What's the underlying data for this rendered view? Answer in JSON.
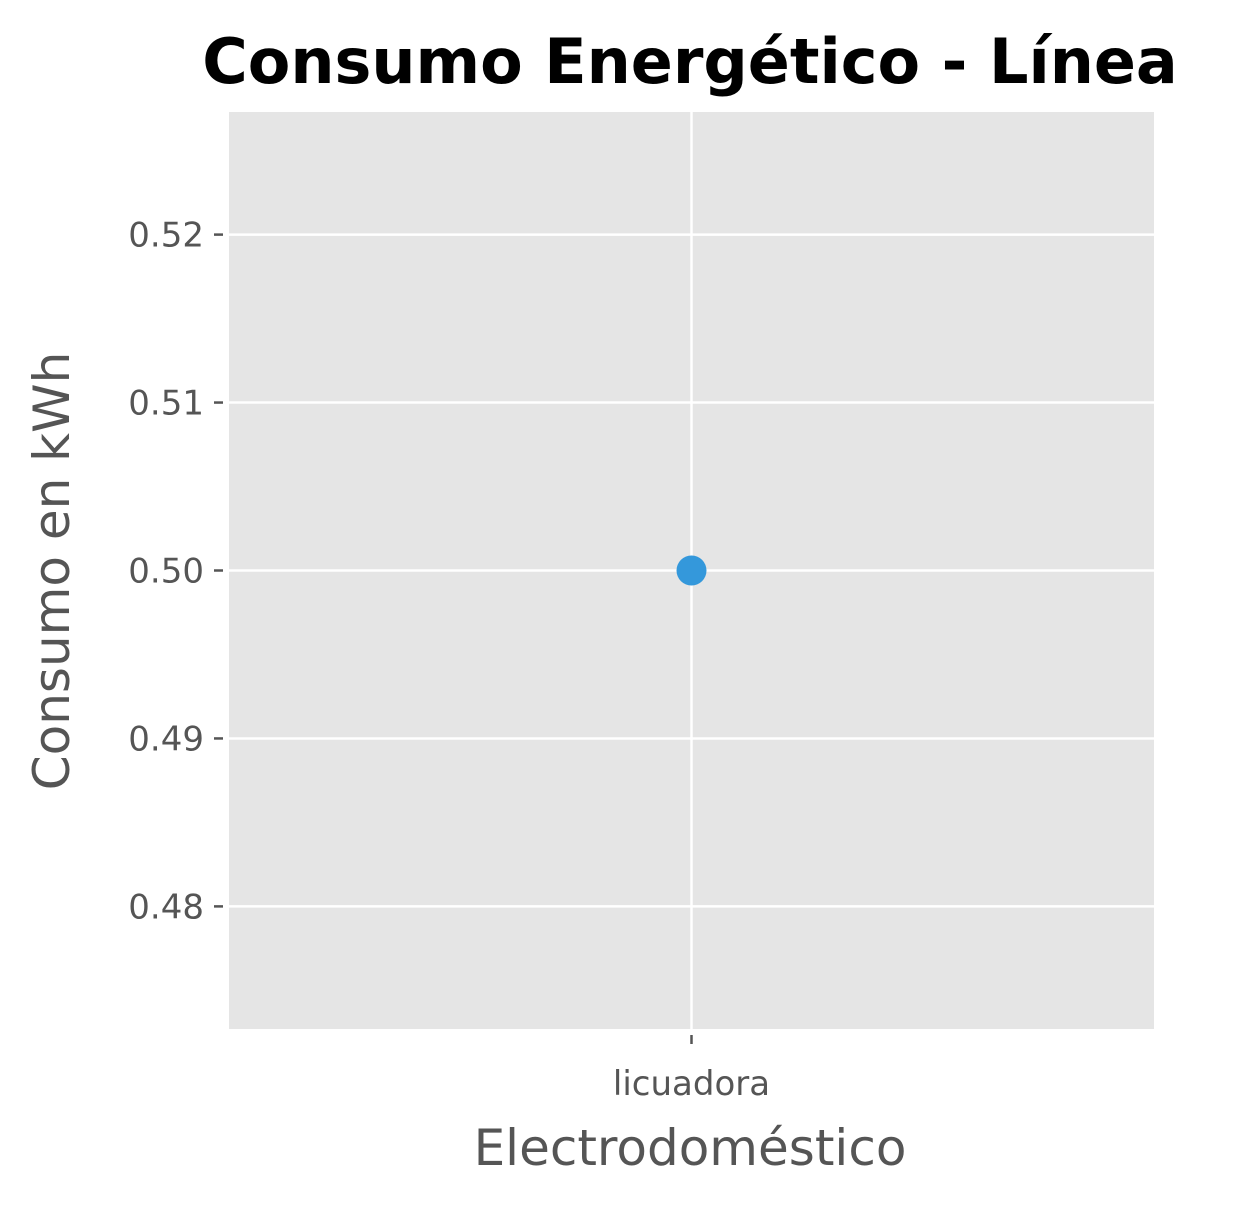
{
  "chart_data": {
    "type": "line",
    "title": "Consumo Energético - Línea",
    "xlabel": "Electrodoméstico",
    "ylabel": "Consumo en kWh",
    "categories": [
      "licuadora"
    ],
    "series": [
      {
        "values": [
          0.5
        ],
        "color": "#3498db"
      }
    ],
    "ylim": [
      0.4727,
      0.5273
    ],
    "yticks": [
      0.48,
      0.49,
      0.5,
      0.51,
      0.52
    ],
    "ytick_labels": [
      "0.48",
      "0.49",
      "0.50",
      "0.51",
      "0.52"
    ],
    "grid": true,
    "colors": {
      "plot_background": "#e5e5e5",
      "grid": "#ffffff",
      "tick_text": "#555555"
    }
  }
}
